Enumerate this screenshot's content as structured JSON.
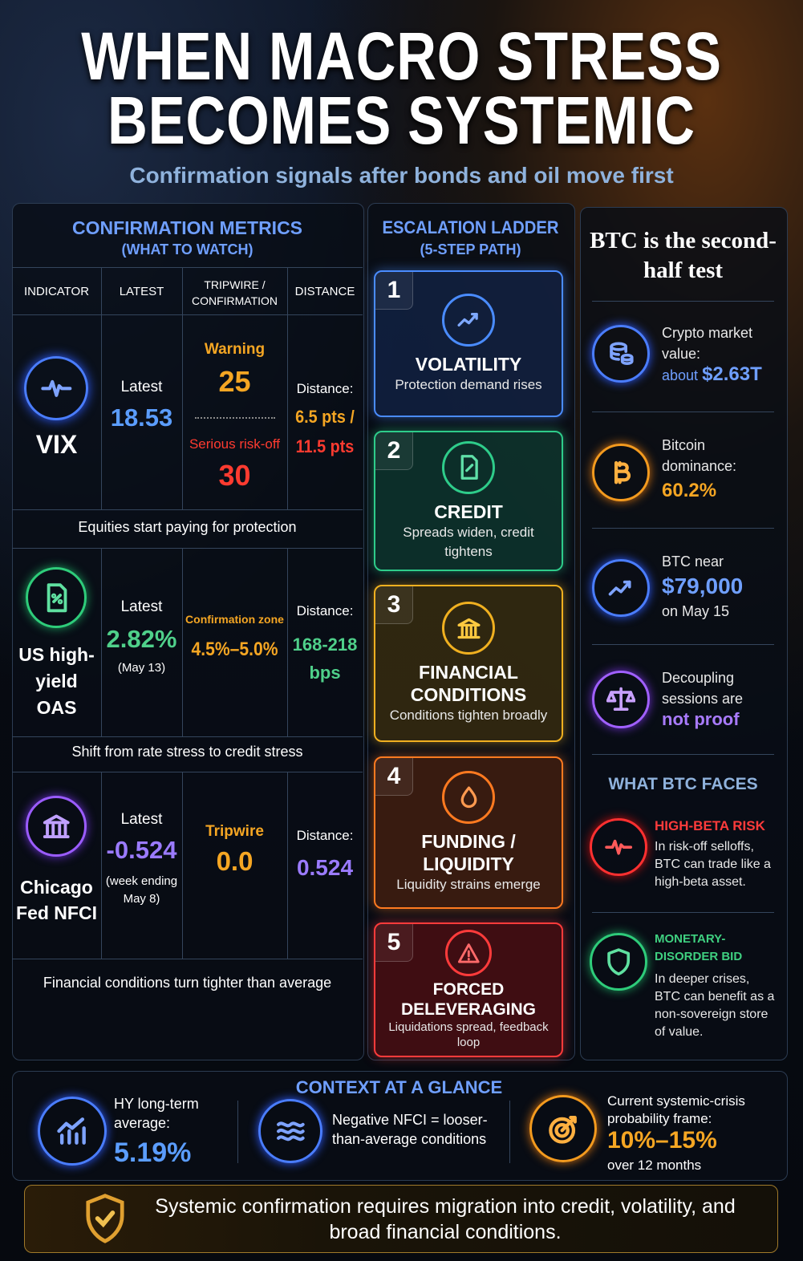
{
  "header": {
    "title_line1": "WHEN MACRO STRESS",
    "title_line2": "BECOMES SYSTEMIC",
    "subtitle": "Confirmation signals after bonds and oil move first"
  },
  "metrics": {
    "title": "CONFIRMATION METRICS",
    "subtitle": "(WHAT TO WATCH)",
    "columns": [
      "INDICATOR",
      "LATEST",
      "TRIPWIRE / CONFIRMATION",
      "DISTANCE"
    ],
    "rows": [
      {
        "indicator": "VIX",
        "latest_label": "Latest",
        "latest": "18.53",
        "warning_label": "Warning",
        "warning": "25",
        "serious_label": "Serious risk-off",
        "serious": "30",
        "distance_label": "Distance:",
        "distance_warning": "6.5 pts /",
        "distance_serious": "11.5 pts",
        "note": "Equities start paying for protection"
      },
      {
        "indicator": "US high-yield OAS",
        "latest_label": "Latest",
        "latest": "2.82%",
        "latest_date": "(May 13)",
        "tripwire_label": "Confirmation zone",
        "tripwire": "4.5%–5.0%",
        "distance_label": "Distance:",
        "distance": "168-218 bps",
        "note": "Shift from rate stress to credit stress"
      },
      {
        "indicator": "Chicago Fed NFCI",
        "latest_label": "Latest",
        "latest": "-0.524",
        "latest_date": "(week ending May 8)",
        "tripwire_label": "Tripwire",
        "tripwire": "0.0",
        "distance_label": "Distance:",
        "distance": "0.524",
        "note": "Financial conditions turn tighter than average"
      }
    ]
  },
  "ladder": {
    "title": "ESCALATION LADDER",
    "subtitle": "(5-STEP PATH)",
    "steps": [
      {
        "number": "1",
        "title": "VOLATILITY",
        "text": "Protection demand rises"
      },
      {
        "number": "2",
        "title": "CREDIT",
        "text": "Spreads widen, credit tightens"
      },
      {
        "number": "3",
        "title": "FINANCIAL CONDITIONS",
        "text": "Conditions tighten broadly"
      },
      {
        "number": "4",
        "title": "FUNDING / LIQUIDITY",
        "text": "Liquidity strains emerge"
      },
      {
        "number": "5",
        "title": "FORCED DELEVERAGING",
        "text": "Liquidations spread, feedback loop"
      }
    ]
  },
  "btc": {
    "title": "BTC is the second-half test",
    "items": [
      {
        "text": "Crypto market value:",
        "prefix": "about",
        "value": "$2.63T"
      },
      {
        "text": "Bitcoin dominance:",
        "value": "60.2%"
      },
      {
        "text": "BTC near",
        "value": "$79,000",
        "suffix": "on May 15"
      },
      {
        "text": "Decoupling sessions are",
        "value": "not proof"
      }
    ],
    "faces_title": "WHAT BTC FACES",
    "faces": [
      {
        "title": "HIGH-BETA RISK",
        "text": "In risk-off selloffs, BTC can trade like a high-beta asset."
      },
      {
        "title": "MONETARY-DISORDER BID",
        "text": "In deeper crises, BTC can benefit as a non-sovereign store of value."
      }
    ]
  },
  "context": {
    "title": "CONTEXT AT A GLANCE",
    "items": [
      {
        "text": "HY long-term average:",
        "value": "5.19%"
      },
      {
        "text": "Negative NFCI = looser-than-average conditions"
      },
      {
        "text": "Current systemic-crisis probability frame:",
        "value": "10%–15%",
        "suffix": "over 12 months"
      }
    ]
  },
  "footer": {
    "text": "Systemic confirmation requires migration into credit, volatility, and broad financial conditions."
  }
}
